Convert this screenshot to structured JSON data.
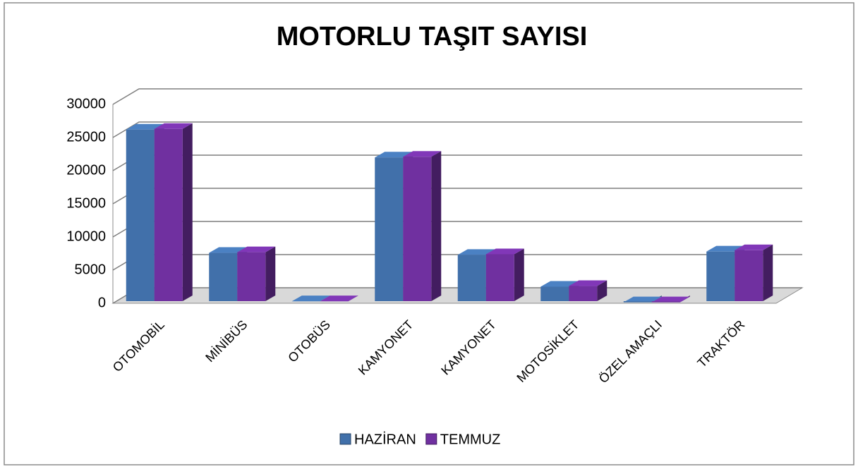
{
  "chart_data": {
    "type": "bar",
    "title": "MOTORLU TAŞIT SAYISI",
    "categories": [
      "OTOMOBİL",
      "MİNİBÜS",
      "OTOBÜS",
      "KAMYONET",
      "KAMYONET",
      "MOTOSİKLET",
      "ÖZEL AMAÇLI",
      "TRAKTÖR"
    ],
    "series": [
      {
        "name": "HAZİRAN",
        "color": "#4170aa",
        "values": [
          26200,
          7600,
          300,
          22000,
          7300,
          2500,
          150,
          7800
        ]
      },
      {
        "name": "TEMMUZ",
        "color": "#7030a0",
        "values": [
          26300,
          7700,
          300,
          22100,
          7400,
          2600,
          150,
          8000
        ]
      }
    ],
    "ylim": [
      0,
      30000
    ],
    "yticks": [
      0,
      5000,
      10000,
      15000,
      20000,
      25000,
      30000
    ],
    "grid": true,
    "legend": "bottom"
  }
}
